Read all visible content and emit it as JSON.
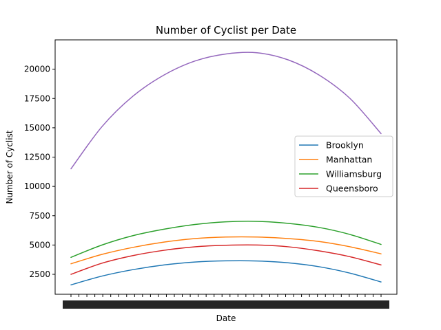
{
  "chart_data": {
    "type": "line",
    "title": "Number of Cyclist per Date",
    "xlabel": "Date",
    "ylabel": "Number of Cyclist",
    "ylim": [
      800,
      22500
    ],
    "yticks": [
      2500,
      5000,
      7500,
      10000,
      12500,
      15000,
      17500,
      20000
    ],
    "x": [
      0,
      0.1,
      0.2,
      0.3,
      0.4,
      0.5,
      0.6,
      0.7,
      0.8,
      0.9,
      1.0
    ],
    "series": [
      {
        "name": "Brooklyn",
        "color": "#1f77b4",
        "values": [
          1600,
          2350,
          2900,
          3300,
          3550,
          3650,
          3640,
          3480,
          3150,
          2600,
          1850
        ]
      },
      {
        "name": "Manhattan",
        "color": "#ff7f0e",
        "values": [
          3400,
          4200,
          4800,
          5250,
          5550,
          5680,
          5680,
          5550,
          5300,
          4850,
          4250
        ]
      },
      {
        "name": "Williamsburg",
        "color": "#2ca02c",
        "values": [
          3950,
          5000,
          5800,
          6350,
          6750,
          6980,
          7020,
          6850,
          6500,
          5900,
          5050
        ]
      },
      {
        "name": "Queensboro",
        "color": "#d62728",
        "values": [
          2500,
          3450,
          4100,
          4550,
          4850,
          4980,
          5000,
          4850,
          4500,
          4000,
          3300
        ]
      },
      {
        "color": "#9467bd",
        "values": [
          11500,
          15100,
          17700,
          19500,
          20700,
          21300,
          21400,
          20800,
          19500,
          17500,
          14500
        ]
      }
    ],
    "legend": [
      "Brooklyn",
      "Manhattan",
      "Williamsburg",
      "Queensboro"
    ],
    "legend_position": "center-right",
    "grid": false
  }
}
